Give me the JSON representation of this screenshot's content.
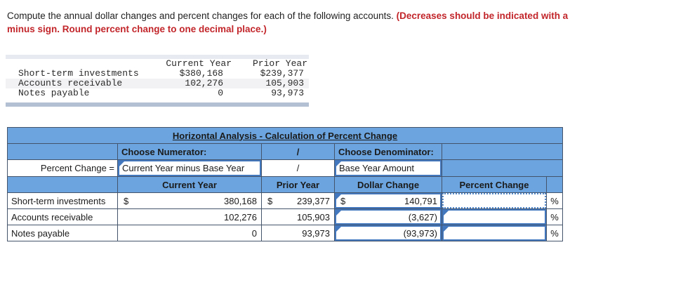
{
  "instruction": {
    "line1_normal": "Compute the annual dollar changes and percent changes for each of the following accounts. ",
    "line1_red": "(Decreases should be indicated with a",
    "line2_red": "minus sign. Round percent change to one decimal place.)"
  },
  "source_table": {
    "col_headers": {
      "current_year": "Current Year",
      "prior_year": "Prior Year"
    },
    "rows": [
      {
        "label": "Short-term investments",
        "current_year": "$380,168",
        "prior_year": "$239,377"
      },
      {
        "label": "Accounts receivable",
        "current_year": "102,276",
        "prior_year": "105,903"
      },
      {
        "label": "Notes payable",
        "current_year": "0",
        "prior_year": "93,973"
      }
    ]
  },
  "analysis_table": {
    "title": "Horizontal Analysis - Calculation of Percent Change",
    "choose_numerator_label": "Choose Numerator:",
    "choose_denominator_label": "Choose Denominator:",
    "slash": "/",
    "formula_label": "Percent Change =",
    "numerator_value": "Current Year minus Base Year",
    "denominator_value": "Base Year Amount",
    "col_headers": {
      "current_year": "Current Year",
      "prior_year": "Prior Year",
      "dollar_change": "Dollar Change",
      "percent_change": "Percent Change"
    },
    "percent_symbol": "%",
    "rows": [
      {
        "label": "Short-term investments",
        "cy_currency": "$",
        "cy": "380,168",
        "py_currency": "$",
        "py": "239,377",
        "dc_currency": "$",
        "dc": "140,791",
        "pc": ""
      },
      {
        "label": "Accounts receivable",
        "cy_currency": "",
        "cy": "102,276",
        "py_currency": "",
        "py": "105,903",
        "dc_currency": "",
        "dc": "(3,627)",
        "pc": ""
      },
      {
        "label": "Notes payable",
        "cy_currency": "",
        "cy": "0",
        "py_currency": "",
        "py": "93,973",
        "dc_currency": "",
        "dc": "(93,973)",
        "pc": ""
      }
    ]
  },
  "colors": {
    "header_blue": "#6BA4DE",
    "grid_border": "#44546A",
    "input_border": "#4377BE",
    "emphasis_red": "#C2262B",
    "stripe_gray": "#F2F2F4",
    "divider_bar": "#B3BFD3"
  }
}
